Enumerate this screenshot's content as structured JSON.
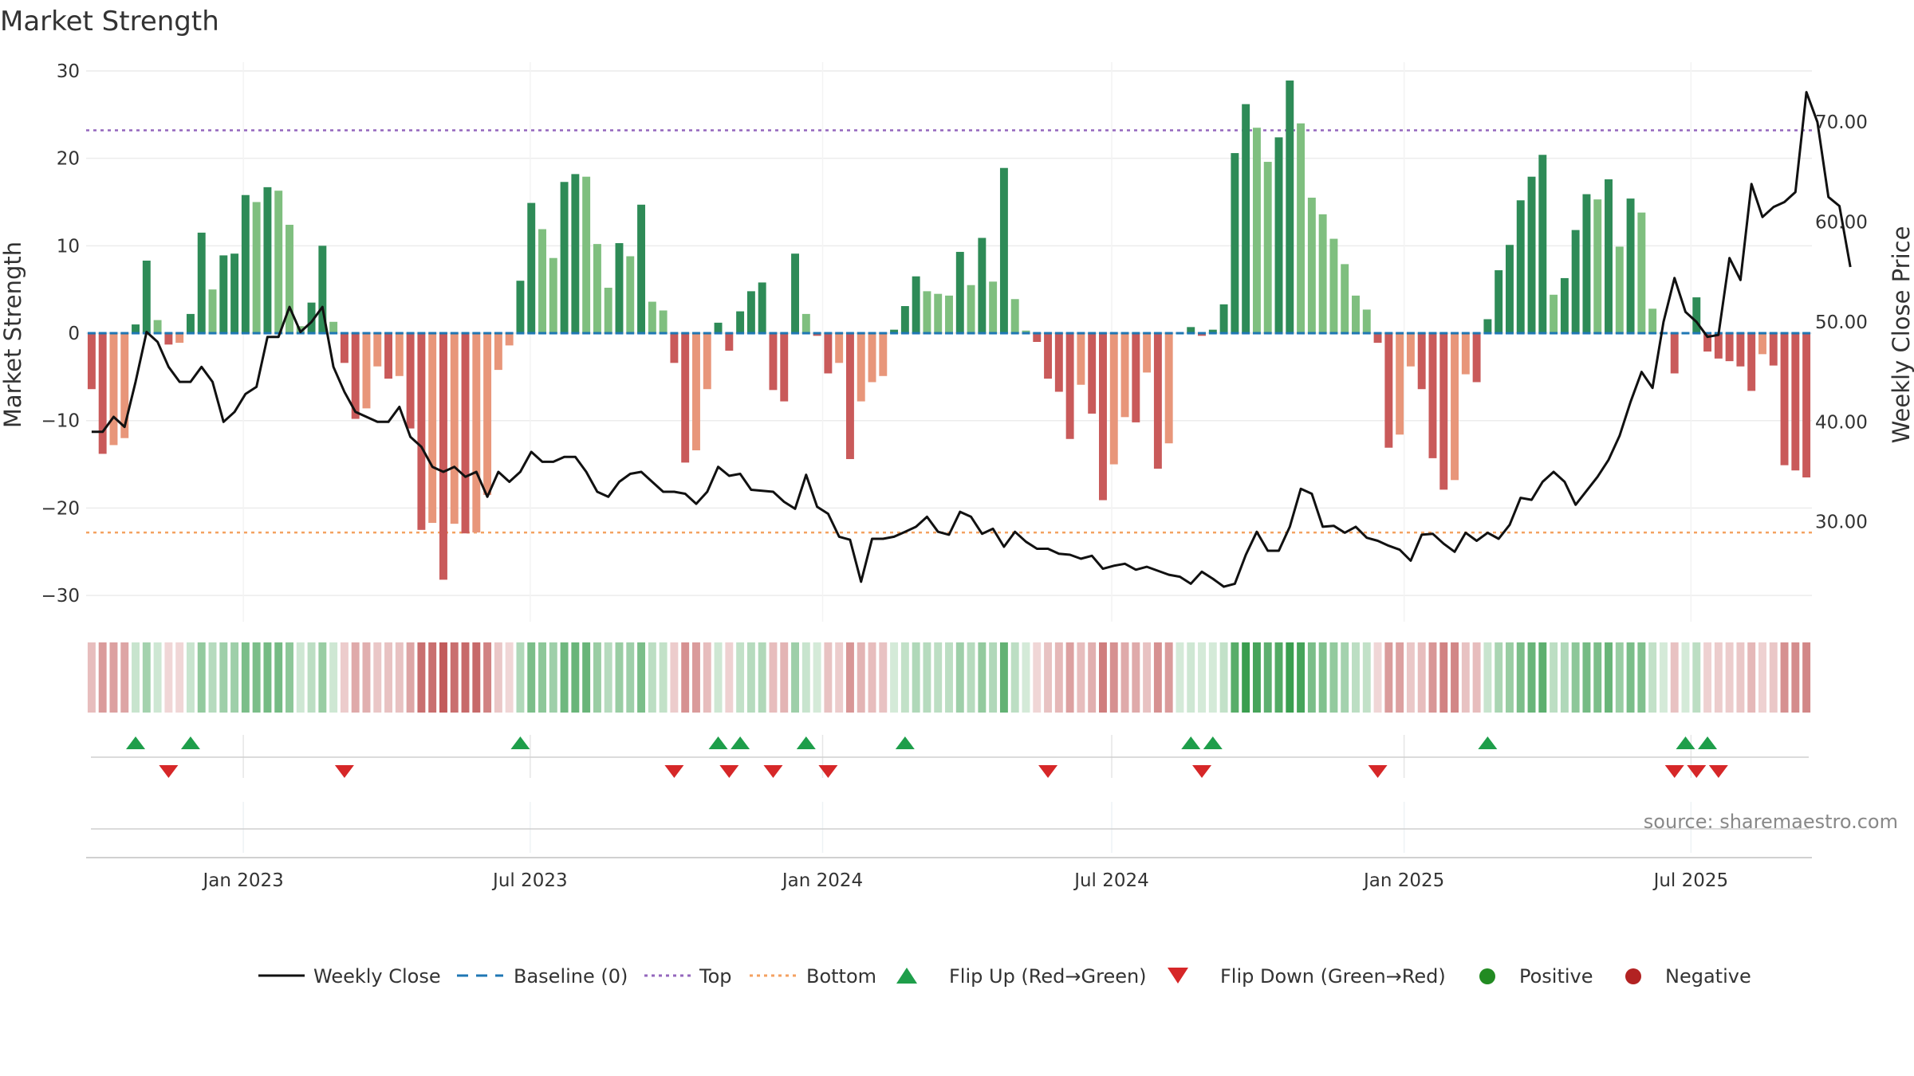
{
  "chart_data": {
    "type": "bar",
    "title": "Market Strength",
    "ylabel": "Market Strength",
    "ylabel_right": "Weekly Close Price",
    "ylim": [
      -33,
      31
    ],
    "ylim_right": [
      20,
      76
    ],
    "y_ticks": [
      "30",
      "20",
      "10",
      "0",
      "−10",
      "−20",
      "−30"
    ],
    "y_tick_values": [
      30,
      20,
      10,
      0,
      -10,
      -20,
      -30
    ],
    "y_right_ticks": [
      "70.00",
      "60.00",
      "50.00",
      "40.00",
      "30.00"
    ],
    "y_right_tick_values": [
      70,
      60,
      50,
      40,
      30
    ],
    "x_ticks": [
      "Jan 2023",
      "Jul 2023",
      "Jan 2024",
      "Jul 2024",
      "Jan 2025",
      "Jul 2025"
    ],
    "x_tick_weeks": [
      14.3,
      40.4,
      67,
      93.3,
      119.9,
      146
    ],
    "top_line": 23.2,
    "bottom_line": -22.8,
    "source": "source: sharemaestro.com",
    "strength": [
      -6.4,
      -13.8,
      -12.8,
      -12.0,
      1.0,
      8.3,
      1.5,
      -1.3,
      -1.1,
      2.2,
      11.5,
      5.0,
      8.9,
      9.1,
      15.8,
      15.0,
      16.7,
      16.3,
      12.4,
      0.8,
      3.5,
      10.0,
      1.3,
      -3.4,
      -9.8,
      -8.6,
      -3.8,
      -5.2,
      -4.9,
      -10.9,
      -22.5,
      -21.7,
      -28.2,
      -21.8,
      -22.9,
      -22.8,
      -18.5,
      -4.2,
      -1.4,
      6.0,
      14.9,
      11.9,
      8.6,
      17.3,
      18.2,
      17.9,
      10.2,
      5.2,
      10.3,
      8.8,
      14.7,
      3.6,
      2.6,
      -3.4,
      -14.8,
      -13.4,
      -6.4,
      1.2,
      -2.0,
      2.5,
      4.8,
      5.8,
      -6.5,
      -7.8,
      9.1,
      2.2,
      -0.3,
      -4.6,
      -3.4,
      -14.4,
      -7.8,
      -5.6,
      -4.9,
      0.4,
      3.1,
      6.5,
      4.8,
      4.5,
      4.3,
      9.3,
      5.5,
      10.9,
      5.9,
      18.9,
      3.9,
      0.3,
      -1.0,
      -5.2,
      -6.7,
      -12.1,
      -5.9,
      -9.2,
      -19.1,
      -15.0,
      -9.6,
      -10.2,
      -4.5,
      -15.5,
      -12.6,
      0.0,
      0.7,
      -0.3,
      0.4,
      3.3,
      20.6,
      26.2,
      23.5,
      19.6,
      22.4,
      28.9,
      24.0,
      15.5,
      13.6,
      10.8,
      7.9,
      4.3,
      2.7,
      -1.1,
      -13.1,
      -11.6,
      -3.8,
      -6.4,
      -14.3,
      -17.9,
      -16.8,
      -4.7,
      -5.6,
      1.6,
      7.2,
      10.1,
      15.2,
      17.9,
      20.4,
      4.4,
      6.3,
      11.8,
      15.9,
      15.3,
      17.6,
      9.9,
      15.4,
      13.8,
      2.8,
      0.0,
      -4.6,
      0.0,
      4.1,
      -2.1,
      -2.9,
      -3.2,
      -3.8,
      -6.6,
      -2.4,
      -3.7,
      -15.1,
      -15.7,
      -16.5
    ],
    "weekly_close": [
      39.0,
      39.0,
      40.5,
      39.5,
      44.0,
      49.0,
      48.0,
      45.5,
      44.0,
      44.0,
      45.5,
      44.0,
      40.0,
      41.0,
      42.8,
      43.5,
      48.5,
      48.5,
      51.5,
      49.0,
      50.0,
      51.5,
      45.5,
      43.0,
      41.0,
      40.5,
      40.0,
      40.0,
      41.5,
      38.5,
      37.5,
      35.5,
      35.0,
      35.5,
      34.5,
      35.0,
      32.5,
      35.0,
      34.0,
      35.0,
      37.0,
      36.0,
      36.0,
      36.5,
      36.5,
      35.0,
      33.0,
      32.5,
      34.0,
      34.8,
      35.0,
      34.0,
      33.0,
      33.0,
      32.8,
      31.8,
      33.0,
      35.5,
      34.6,
      34.8,
      33.2,
      33.1,
      33.0,
      32.0,
      31.3,
      34.7,
      31.5,
      30.8,
      28.5,
      28.2,
      24.0,
      28.3,
      28.3,
      28.5,
      29.0,
      29.5,
      30.5,
      29.0,
      28.7,
      31.0,
      30.5,
      28.8,
      29.3,
      27.5,
      29.0,
      28.0,
      27.3,
      27.3,
      26.8,
      26.7,
      26.3,
      26.6,
      25.3,
      25.6,
      25.8,
      25.2,
      25.5,
      25.1,
      24.7,
      24.5,
      23.8,
      25.0,
      24.3,
      23.5,
      23.8,
      26.7,
      29.0,
      27.1,
      27.1,
      29.5,
      33.3,
      32.8,
      29.5,
      29.6,
      28.9,
      29.5,
      28.4,
      28.1,
      27.6,
      27.2,
      26.1,
      28.7,
      28.8,
      27.8,
      27.0,
      28.9,
      28.1,
      28.9,
      28.3,
      29.7,
      32.4,
      32.2,
      34.0,
      35.0,
      34.0,
      31.7,
      33.1,
      34.5,
      36.2,
      38.6,
      42.0,
      45.0,
      43.4,
      50.0,
      54.4,
      51.0,
      50.0,
      48.5,
      48.7,
      56.4,
      54.2,
      63.8,
      60.5,
      61.5,
      62.0,
      63.0,
      73.0,
      70.0,
      62.5,
      61.6,
      55.5
    ],
    "strength_band": [
      -6,
      -13,
      -12,
      -11,
      2,
      8,
      1,
      -1,
      -1,
      2,
      11,
      5,
      9,
      9,
      15,
      15,
      16,
      16,
      12,
      1,
      4,
      10,
      1,
      -3,
      -10,
      -9,
      -4,
      -5,
      -5,
      -11,
      -22,
      -22,
      -28,
      -22,
      -23,
      -23,
      -18,
      -4,
      -1,
      6,
      15,
      12,
      9,
      17,
      18,
      18,
      10,
      5,
      10,
      9,
      15,
      4,
      3,
      -3,
      -15,
      -13,
      -6,
      1,
      -2,
      3,
      5,
      6,
      -6,
      -8,
      9,
      2,
      0,
      -5,
      -3,
      -14,
      -8,
      -6,
      -5,
      0,
      3,
      6,
      5,
      4,
      4,
      9,
      5,
      11,
      6,
      19,
      4,
      0,
      -1,
      -5,
      -7,
      -12,
      -6,
      -9,
      -19,
      -15,
      -10,
      -10,
      -5,
      -15,
      -13,
      0,
      1,
      0,
      0,
      3,
      21,
      26,
      24,
      20,
      22,
      29,
      24,
      15,
      14,
      11,
      8,
      4,
      3,
      -1,
      -13,
      -12,
      -4,
      -6,
      -14,
      -18,
      -17,
      -5,
      -6,
      2,
      7,
      10,
      15,
      18,
      20,
      4,
      6,
      12,
      16,
      15,
      18,
      10,
      15,
      14,
      3,
      0,
      -5,
      0,
      4,
      -2,
      -3,
      -3,
      -4,
      -7,
      -2,
      -4,
      -15,
      -16,
      -17
    ],
    "flip_up_weeks": [
      4,
      9,
      39,
      57,
      59,
      65,
      74,
      100,
      102,
      127,
      145,
      147
    ],
    "flip_down_weeks": [
      7,
      23,
      53,
      58,
      62,
      67,
      87,
      101,
      117,
      144,
      146,
      148
    ],
    "legend": [
      "Weekly Close",
      "Baseline (0)",
      "Top",
      "Bottom",
      "Flip Up (Red→Green)",
      "Flip Down (Green→Red)",
      "Positive",
      "Negative"
    ],
    "colors": {
      "pos_strong": "#2e8b57",
      "pos_light": "#7fbf7f",
      "neg_strong": "#c95a5a",
      "neg_light": "#e8967a",
      "top": "#9467bd",
      "bottom": "#f4a261",
      "baseline": "#1f77b4",
      "close": "#111111",
      "flip_up": "#1e9e4a",
      "flip_down": "#d62728",
      "positive_dot": "#228b22",
      "negative_dot": "#b22222"
    }
  }
}
